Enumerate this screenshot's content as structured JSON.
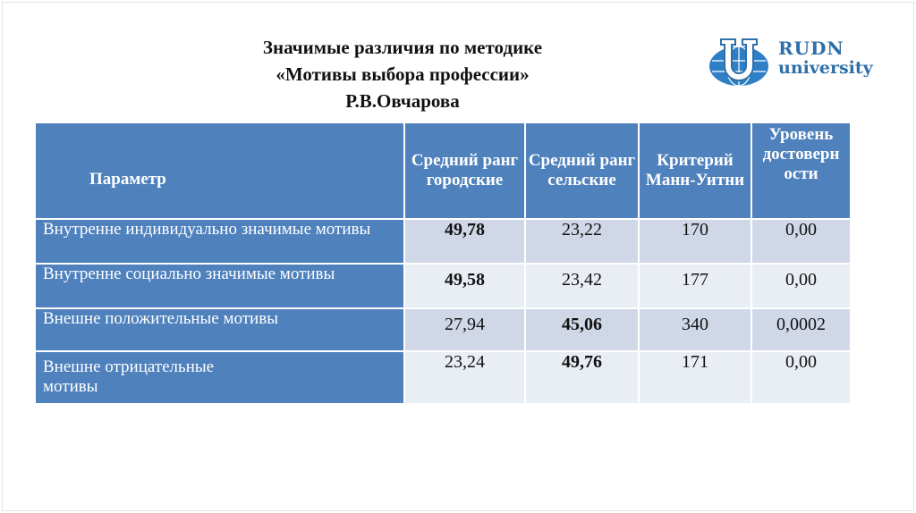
{
  "title": {
    "line1": "Значимые различия по методике",
    "line2": "«Мотивы выбора профессии»",
    "line3": "Р.В.Овчарова"
  },
  "logo": {
    "name": "RUDN",
    "sub": "university"
  },
  "table": {
    "headers": [
      "Параметр",
      "Средний ранг городские",
      "Средний ранг сельские",
      "Критерий Манн-Уитни",
      "Уровень достоверн ости"
    ],
    "rows": [
      {
        "param": "Внутренне индивидуально значимые мотивы",
        "city": "49,78",
        "rural": "23,22",
        "u": "170",
        "p": "0,00",
        "bold": "city"
      },
      {
        "param": "Внутренне социально значимые мотивы",
        "city": "49,58",
        "rural": "23,42",
        "u": "177",
        "p": "0,00",
        "bold": "city"
      },
      {
        "param": "Внешне положительные мотивы",
        "city": "27,94",
        "rural": "45,06",
        "u": "340",
        "p": "0,0002",
        "bold": "rural"
      },
      {
        "param": "Внешне отрицательные мотивы",
        "city": "23,24",
        "rural": "49,76",
        "u": "171",
        "p": "0,00",
        "bold": "rural"
      }
    ]
  },
  "colors": {
    "header": "#4f81bd",
    "row_odd": "#d0d8e8",
    "row_even": "#e9edf4",
    "logo": "#2f6fa8"
  }
}
